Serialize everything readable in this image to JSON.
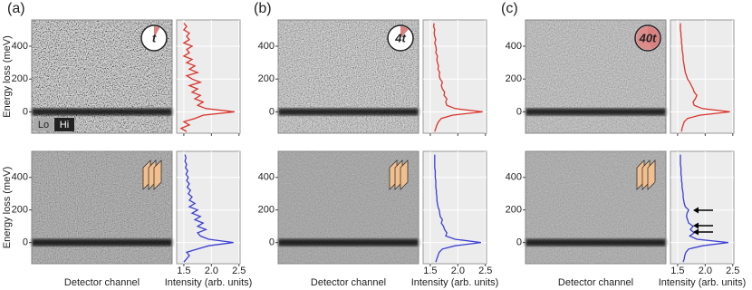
{
  "ylabel": "Energy loss (meV)",
  "colorbar": [
    "Lo",
    "Hi"
  ],
  "panels": [
    {
      "label": "(a)",
      "xlabel": "Detector channel",
      "icon": "t"
    },
    {
      "label": "(b)",
      "xlabel": "Detector channel",
      "icon": "4t"
    },
    {
      "label": "(c)",
      "xlabel": "Detector channel",
      "icon": "40t"
    }
  ],
  "energy_axis": {
    "ylim": [
      -130,
      560
    ],
    "yticks": [
      0,
      200,
      400
    ]
  },
  "intensity_axis": {
    "xlabel": "Intensity (arb. units)",
    "xlim": [
      1.37,
      2.52
    ],
    "xticks": [
      1.5,
      {
        "value": 2,
        "label": "2.0"
      },
      2.5
    ],
    "grid": true
  },
  "chart_data": [
    {
      "type": "line",
      "color": "#d9342b",
      "x": [
        -120,
        -100,
        -80,
        -60,
        -40,
        -20,
        0,
        20,
        40,
        60,
        80,
        100,
        120,
        140,
        160,
        180,
        200,
        220,
        240,
        260,
        280,
        300,
        320,
        340,
        360,
        380,
        400,
        420,
        440,
        460,
        480,
        500,
        520,
        540
      ],
      "values": [
        1.55,
        1.45,
        1.6,
        1.5,
        1.7,
        1.85,
        2.42,
        1.9,
        1.75,
        1.85,
        1.7,
        1.8,
        1.65,
        1.75,
        1.6,
        1.8,
        1.65,
        1.55,
        1.75,
        1.6,
        1.7,
        1.55,
        1.65,
        1.5,
        1.6,
        1.55,
        1.65,
        1.5,
        1.6,
        1.55,
        1.6,
        1.5,
        1.55,
        1.5
      ]
    },
    {
      "type": "line",
      "color": "#d9342b",
      "x": [
        -120,
        -100,
        -80,
        -60,
        -40,
        -20,
        0,
        20,
        40,
        60,
        80,
        100,
        120,
        140,
        160,
        180,
        200,
        220,
        240,
        260,
        280,
        300,
        320,
        340,
        360,
        380,
        400,
        420,
        440,
        460,
        480,
        500,
        520,
        540
      ],
      "values": [
        1.58,
        1.6,
        1.62,
        1.65,
        1.7,
        1.9,
        2.45,
        1.95,
        1.8,
        1.78,
        1.8,
        1.75,
        1.76,
        1.72,
        1.7,
        1.72,
        1.68,
        1.66,
        1.67,
        1.64,
        1.65,
        1.63,
        1.62,
        1.63,
        1.6,
        1.61,
        1.6,
        1.58,
        1.6,
        1.58,
        1.57,
        1.58,
        1.56,
        1.57
      ]
    },
    {
      "type": "line",
      "color": "#d9342b",
      "x": [
        -120,
        -100,
        -80,
        -60,
        -40,
        -20,
        0,
        20,
        40,
        60,
        80,
        100,
        120,
        140,
        160,
        180,
        200,
        220,
        240,
        260,
        280,
        300,
        320,
        340,
        360,
        380,
        400,
        420,
        440,
        460,
        480,
        500,
        520,
        540
      ],
      "values": [
        1.57,
        1.58,
        1.6,
        1.62,
        1.68,
        1.9,
        2.45,
        1.95,
        1.8,
        1.78,
        1.82,
        1.85,
        1.8,
        1.78,
        1.75,
        1.72,
        1.68,
        1.66,
        1.64,
        1.63,
        1.62,
        1.61,
        1.6,
        1.6,
        1.59,
        1.58,
        1.58,
        1.57,
        1.57,
        1.56,
        1.56,
        1.55,
        1.55,
        1.55
      ]
    },
    {
      "type": "line",
      "color": "#3b3fd0",
      "x": [
        -120,
        -100,
        -80,
        -60,
        -40,
        -20,
        0,
        20,
        40,
        60,
        80,
        100,
        120,
        140,
        160,
        180,
        200,
        220,
        240,
        260,
        280,
        300,
        320,
        340,
        360,
        380,
        400,
        420,
        440,
        460,
        480,
        500,
        520,
        540
      ],
      "values": [
        1.5,
        1.55,
        1.6,
        1.55,
        1.75,
        1.95,
        2.4,
        1.95,
        1.8,
        1.75,
        1.9,
        1.75,
        1.85,
        1.7,
        1.8,
        1.65,
        1.75,
        1.6,
        1.7,
        1.6,
        1.65,
        1.58,
        1.62,
        1.56,
        1.6,
        1.55,
        1.58,
        1.54,
        1.57,
        1.53,
        1.55,
        1.52,
        1.54,
        1.52
      ]
    },
    {
      "type": "line",
      "color": "#3b3fd0",
      "x": [
        -120,
        -100,
        -80,
        -60,
        -40,
        -20,
        0,
        20,
        40,
        60,
        80,
        100,
        120,
        140,
        160,
        180,
        200,
        220,
        240,
        260,
        280,
        300,
        320,
        340,
        360,
        380,
        400,
        420,
        440,
        460,
        480,
        500,
        520,
        540
      ],
      "values": [
        1.6,
        1.62,
        1.64,
        1.66,
        1.72,
        1.95,
        2.42,
        1.95,
        1.78,
        1.8,
        1.76,
        1.74,
        1.7,
        1.72,
        1.68,
        1.67,
        1.66,
        1.64,
        1.63,
        1.62,
        1.62,
        1.61,
        1.61,
        1.6,
        1.6,
        1.6,
        1.59,
        1.59,
        1.59,
        1.58,
        1.58,
        1.58,
        1.58,
        1.58
      ]
    },
    {
      "type": "line",
      "color": "#3b3fd0",
      "x": [
        -120,
        -100,
        -80,
        -60,
        -40,
        -20,
        0,
        20,
        40,
        60,
        80,
        100,
        120,
        140,
        160,
        180,
        200,
        220,
        240,
        260,
        280,
        300,
        320,
        340,
        360,
        380,
        400,
        420,
        440,
        460,
        480,
        500,
        520,
        540
      ],
      "values": [
        1.6,
        1.62,
        1.63,
        1.65,
        1.7,
        1.95,
        2.42,
        1.85,
        1.72,
        1.8,
        1.73,
        1.78,
        1.7,
        1.68,
        1.66,
        1.67,
        1.7,
        1.64,
        1.62,
        1.61,
        1.6,
        1.6,
        1.59,
        1.58,
        1.58,
        1.57,
        1.57,
        1.56,
        1.56,
        1.56,
        1.55,
        1.55,
        1.55,
        1.55
      ]
    }
  ]
}
